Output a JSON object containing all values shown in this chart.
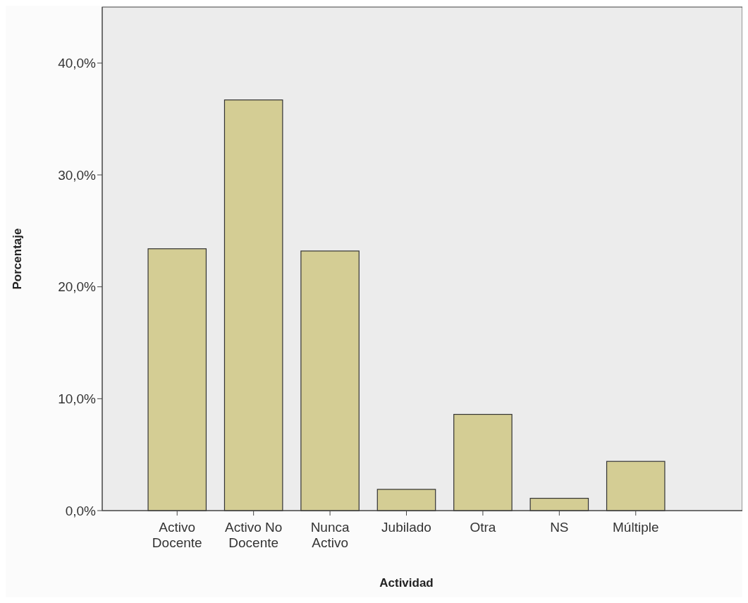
{
  "chart_data": {
    "type": "bar",
    "xlabel": "Actividad",
    "ylabel": "Porcentaje",
    "categories": [
      "Activo Docente",
      "Activo No Docente",
      "Nunca Activo",
      "Jubilado",
      "Otra",
      "NS",
      "Múltiple"
    ],
    "values": [
      23.4,
      36.7,
      23.2,
      1.9,
      8.6,
      1.1,
      4.4
    ],
    "color": "#d4cd94",
    "ylim": [
      0,
      45
    ],
    "yticks": [
      {
        "value": 0,
        "label": "0,0%"
      },
      {
        "value": 10,
        "label": "10,0%"
      },
      {
        "value": 20,
        "label": "20,0%"
      },
      {
        "value": 30,
        "label": "30,0%"
      },
      {
        "value": 40,
        "label": "40,0%"
      }
    ],
    "grid": false
  }
}
